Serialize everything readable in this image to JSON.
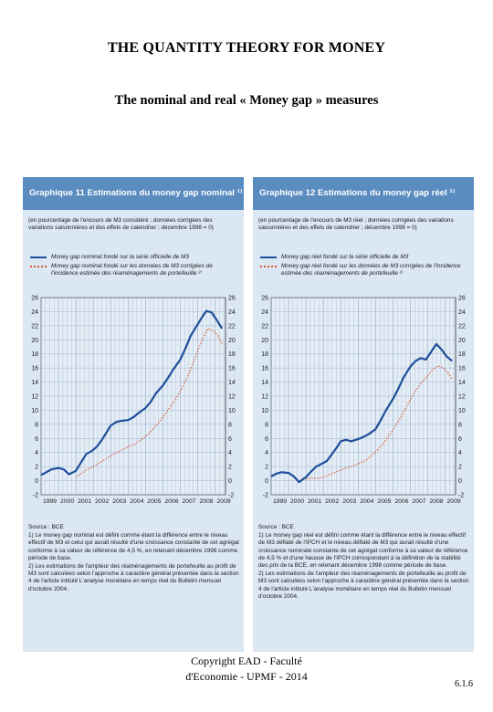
{
  "page": {
    "title": "THE QUANTITY THEORY FOR MONEY",
    "subtitle": "The nominal and real « Money gap » measures",
    "footer_line1": "Copyright EAD - Faculté",
    "footer_line2": "d'Economie - UPMF - 2014",
    "page_number": "6.1.6"
  },
  "panels": [
    {
      "title": "Graphique 11 Estimations du money gap nominal ¹⁾",
      "subtitle": "(en pourcentage de l'encours de M3 considéré ; données corrigées des variations saisonnières et des effets de calendrier ; décembre 1998 = 0)",
      "legend": [
        "Money gap nominal fondé sur la série officielle de M3",
        "Money gap nominal fondé sur les données de M3 corrigées de l'incidence estimée des réaménagements de portefeuille ²⁾"
      ],
      "source": "Source : BCE",
      "notes": [
        "1) Le money gap nominal est défini comme étant la différence entre le niveau effectif de M3 et celui qui aurait résulté d'une croissance constante de cet agrégat conforme à sa valeur de référence de 4,5 %, en retenant décembre 1998 comme période de base.",
        "2) Les estimations de l'ampleur des réaménagements de portefeuille au profit de M3 sont calculées selon l'approche à caractère général présentée dans la section 4 de l'article intitulé L'analyse monétaire en temps réel du Bulletin mensuel d'octobre 2004."
      ]
    },
    {
      "title": "Graphique 12 Estimations du money gap réel ¹⁾",
      "subtitle": "(en pourcentage de l'encours de M3 réel ; données corrigées des variations saisonnières et des effets de calendrier ; décembre 1998 = 0)",
      "legend": [
        "Money gap réel fondé sur la série officielle de M3",
        "Money gap réel fondé sur les données de M3 corrigées de l'incidence estimée des réaménagements de portefeuille ²⁾"
      ],
      "source": "Source : BCE",
      "notes": [
        "1) Le money gap réel est défini comme étant la différence entre le niveau effectif de M3 déflaté de l'IPCH et le niveau déflaté de M3 qui aurait résulté d'une croissance nominale constante de cet agrégat conforme à sa valeur de référence de 4,5 % et d'une hausse de l'IPCH correspondant à la définition de la stabilité des prix de la BCE, en retenant décembre 1998 comme période de base.",
        "2) Les estimations de l'ampleur des réaménagements de portefeuille au profit de M3 sont calculées selon l'approche à caractère général présentée dans la section 4 de l'article intitulé L'analyse monétaire en temps réel du Bulletin mensuel d'octobre 2004."
      ]
    }
  ],
  "chart_data": [
    {
      "type": "line",
      "ylim": [
        -2,
        26
      ],
      "yticks": [
        -2,
        0,
        2,
        4,
        6,
        8,
        10,
        12,
        14,
        16,
        18,
        20,
        22,
        24,
        26
      ],
      "xlim": [
        1999,
        2009.6
      ],
      "xtick_labels": [
        "1999",
        "2000",
        "2001",
        "2002",
        "2003",
        "2004",
        "2005",
        "2006",
        "2007",
        "2008",
        "2009"
      ],
      "grid": true,
      "colors": {
        "official": "#1f4e9a",
        "adjusted": "#d9532b",
        "grid": "#8fa8c4",
        "axis": "#333333"
      },
      "series": [
        {
          "name": "Money gap nominal fondé sur la série officielle de M3",
          "style": "solid",
          "x": [
            1999.0,
            1999.3,
            1999.6,
            2000.0,
            2000.3,
            2000.6,
            2001.0,
            2001.3,
            2001.6,
            2001.9,
            2002.2,
            2002.5,
            2002.8,
            2003.0,
            2003.3,
            2003.6,
            2004.0,
            2004.3,
            2004.6,
            2005.0,
            2005.3,
            2005.6,
            2006.0,
            2006.3,
            2006.6,
            2007.0,
            2007.3,
            2007.6,
            2008.0,
            2008.3,
            2008.5,
            2008.8,
            2009.1,
            2009.4
          ],
          "y": [
            0.8,
            1.2,
            1.6,
            1.8,
            1.6,
            0.9,
            1.4,
            2.6,
            3.8,
            4.2,
            4.8,
            5.8,
            7.0,
            7.8,
            8.3,
            8.5,
            8.6,
            9.0,
            9.6,
            10.3,
            11.2,
            12.4,
            13.5,
            14.6,
            15.8,
            17.2,
            18.8,
            20.6,
            22.2,
            23.4,
            24.1,
            23.9,
            22.8,
            21.6
          ]
        },
        {
          "name": "Money gap nominal fondé sur les données de M3 corrigées de l'incidence estimée des réaménagements de portefeuille ²⁾",
          "style": "dotted",
          "x": [
            2001.0,
            2001.3,
            2001.6,
            2002.0,
            2002.4,
            2002.8,
            2003.2,
            2003.6,
            2004.0,
            2004.4,
            2004.8,
            2005.2,
            2005.6,
            2006.0,
            2006.4,
            2006.8,
            2007.2,
            2007.6,
            2008.0,
            2008.3,
            2008.6,
            2008.9,
            2009.2,
            2009.4
          ],
          "y": [
            0.5,
            1.0,
            1.5,
            2.0,
            2.6,
            3.2,
            3.8,
            4.3,
            4.8,
            5.2,
            5.9,
            6.7,
            7.8,
            9.0,
            10.4,
            11.8,
            13.6,
            15.8,
            18.4,
            20.2,
            21.6,
            21.3,
            20.5,
            19.4
          ]
        }
      ]
    },
    {
      "type": "line",
      "ylim": [
        -2,
        26
      ],
      "yticks": [
        -2,
        0,
        2,
        4,
        6,
        8,
        10,
        12,
        14,
        16,
        18,
        20,
        22,
        24,
        26
      ],
      "xlim": [
        1999,
        2009.6
      ],
      "xtick_labels": [
        "1999",
        "2000",
        "2001",
        "2002",
        "2003",
        "2004",
        "2005",
        "2006",
        "2007",
        "2008",
        "2009"
      ],
      "grid": true,
      "colors": {
        "official": "#1f4e9a",
        "adjusted": "#d9532b",
        "grid": "#8fa8c4",
        "axis": "#333333"
      },
      "series": [
        {
          "name": "Money gap réel fondé sur la série officielle de M3",
          "style": "solid",
          "x": [
            1999.0,
            1999.3,
            1999.6,
            2000.0,
            2000.3,
            2000.6,
            2001.0,
            2001.3,
            2001.6,
            2001.9,
            2002.2,
            2002.5,
            2002.8,
            2003.0,
            2003.3,
            2003.6,
            2004.0,
            2004.3,
            2004.6,
            2005.0,
            2005.3,
            2005.6,
            2006.0,
            2006.3,
            2006.6,
            2007.0,
            2007.3,
            2007.6,
            2007.9,
            2008.2,
            2008.5,
            2008.8,
            2009.1,
            2009.4
          ],
          "y": [
            0.6,
            1.0,
            1.2,
            1.1,
            0.6,
            -0.2,
            0.5,
            1.3,
            2.0,
            2.4,
            2.8,
            3.8,
            4.8,
            5.6,
            5.8,
            5.6,
            5.9,
            6.2,
            6.6,
            7.3,
            8.6,
            10.0,
            11.6,
            13.0,
            14.6,
            16.2,
            17.0,
            17.4,
            17.2,
            18.3,
            19.4,
            18.6,
            17.6,
            17.0
          ]
        },
        {
          "name": "Money gap réel fondé sur les données de M3 corrigées de l'incidence estimée des réaménagements de portefeuille ²⁾",
          "style": "dotted",
          "x": [
            2001.0,
            2001.3,
            2001.6,
            2002.0,
            2002.4,
            2002.8,
            2003.2,
            2003.6,
            2004.0,
            2004.4,
            2004.8,
            2005.2,
            2005.6,
            2006.0,
            2006.4,
            2006.8,
            2007.2,
            2007.6,
            2008.0,
            2008.3,
            2008.6,
            2008.9,
            2009.2,
            2009.4
          ],
          "y": [
            0.2,
            0.4,
            0.3,
            0.5,
            0.9,
            1.3,
            1.7,
            2.0,
            2.4,
            2.8,
            3.6,
            4.6,
            5.8,
            7.2,
            8.8,
            10.6,
            12.4,
            13.8,
            14.9,
            15.8,
            16.3,
            16.0,
            15.2,
            14.4
          ]
        }
      ]
    }
  ]
}
